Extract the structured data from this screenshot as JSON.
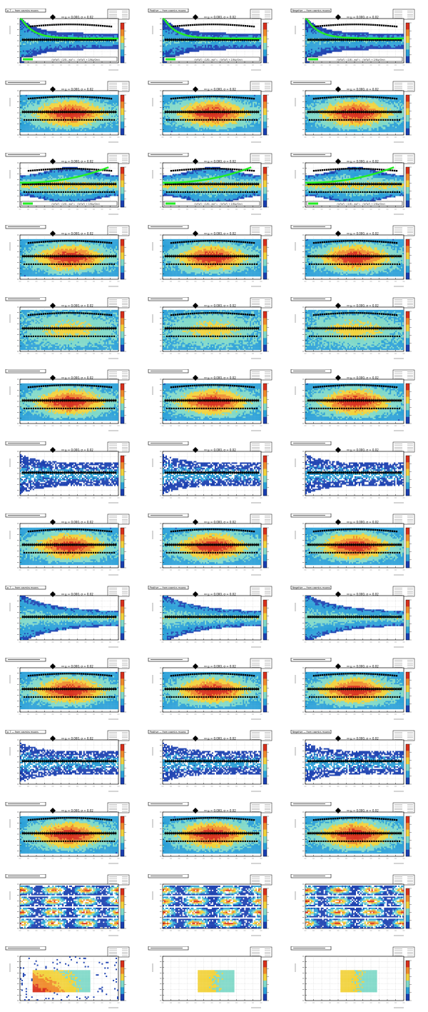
{
  "colors": {
    "low": "#1a3fb0",
    "mid_low": "#2aa0d8",
    "mid": "#7fd9c8",
    "mid_high": "#f2d23a",
    "high": "#d8301c",
    "fit_curve": "#22ee22",
    "marker": "#000000",
    "frame": "#000000"
  },
  "legend_text": {
    "mu_sigma": "μ = 0.000, σ = 0.02",
    "fit_formula": "√(a²/p²) - (1/8) , a/p²·c · √(a²/p²) + 2/8(p/Gev)"
  },
  "panel_titles": {
    "row0": [
      "p_T  —  from cosmics muons",
      "Positive  —  from cosmics muons",
      "Negative  —  from cosmics muons"
    ],
    "row8": [
      "p_T  —  from cosmics muons",
      "Positive  —  from cosmics muons",
      "Negative  —  from cosmics muons"
    ],
    "row10": [
      "p_T  —  from cosmics muons",
      "Positive  —  from cosmics muons",
      "Negative  —  from cosmics muons"
    ]
  },
  "chart_data": [
    {
      "type": "heatmap",
      "row": 0,
      "style": "narrow_fit",
      "fit": true
    },
    {
      "type": "heatmap",
      "row": 1,
      "style": "wide_band"
    },
    {
      "type": "heatmap",
      "row": 2,
      "style": "rising_fit",
      "fit": true
    },
    {
      "type": "heatmap",
      "row": 3,
      "style": "wide_band"
    },
    {
      "type": "heatmap",
      "row": 4,
      "style": "wide_band_cyan"
    },
    {
      "type": "heatmap",
      "row": 5,
      "style": "wide_band"
    },
    {
      "type": "heatmap",
      "row": 6,
      "style": "sparse_blue"
    },
    {
      "type": "heatmap",
      "row": 7,
      "style": "wide_band"
    },
    {
      "type": "heatmap",
      "row": 8,
      "style": "decay_cyan"
    },
    {
      "type": "heatmap",
      "row": 9,
      "style": "wide_band"
    },
    {
      "type": "heatmap",
      "row": 10,
      "style": "sparse_blue"
    },
    {
      "type": "heatmap",
      "row": 11,
      "style": "wide_band"
    },
    {
      "type": "heatmap",
      "row": 12,
      "style": "periodic"
    },
    {
      "type": "heatmap",
      "row": 13,
      "style": "block"
    }
  ]
}
